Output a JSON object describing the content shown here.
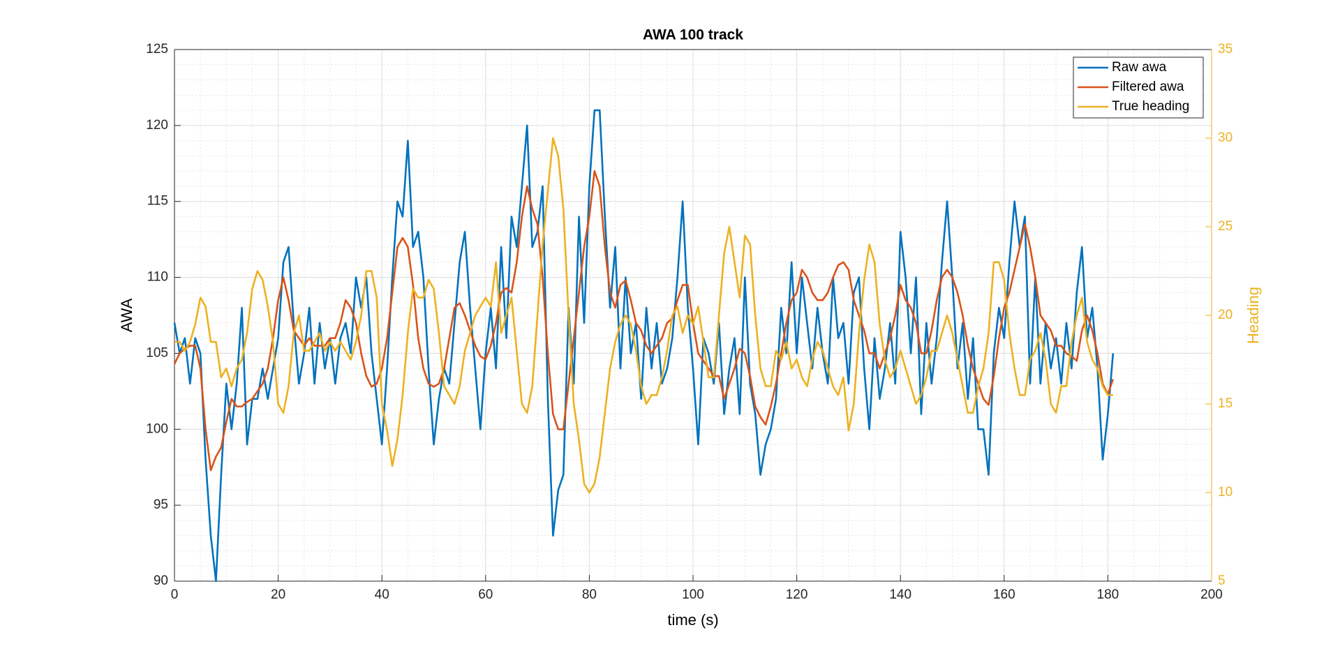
{
  "chart_data": {
    "type": "line",
    "title": "AWA 100 track",
    "xlabel": "time (s)",
    "ylabel": "AWA",
    "y2label": "Heading",
    "xlim": [
      0,
      200
    ],
    "xticks": [
      0,
      20,
      40,
      60,
      80,
      100,
      120,
      140,
      160,
      180,
      200
    ],
    "ylim": [
      90,
      125
    ],
    "yticks": [
      90,
      95,
      100,
      105,
      110,
      115,
      120,
      125
    ],
    "y2lim": [
      5,
      35
    ],
    "y2ticks": [
      5,
      10,
      15,
      20,
      25,
      30,
      35
    ],
    "grid": true,
    "minor_grid": true,
    "legend": "northeast",
    "y2color": "#EDB120",
    "x": [
      0,
      1,
      2,
      3,
      4,
      5,
      6,
      7,
      8,
      9,
      10,
      11,
      12,
      13,
      14,
      15,
      16,
      17,
      18,
      19,
      20,
      21,
      22,
      23,
      24,
      25,
      26,
      27,
      28,
      29,
      30,
      31,
      32,
      33,
      34,
      35,
      36,
      37,
      38,
      39,
      40,
      41,
      42,
      43,
      44,
      45,
      46,
      47,
      48,
      49,
      50,
      51,
      52,
      53,
      54,
      55,
      56,
      57,
      58,
      59,
      60,
      61,
      62,
      63,
      64,
      65,
      66,
      67,
      68,
      69,
      70,
      71,
      72,
      73,
      74,
      75,
      76,
      77,
      78,
      79,
      80,
      81,
      82,
      83,
      84,
      85,
      86,
      87,
      88,
      89,
      90,
      91,
      92,
      93,
      94,
      95,
      96,
      97,
      98,
      99,
      100,
      101,
      102,
      103,
      104,
      105,
      106,
      107,
      108,
      109,
      110,
      111,
      112,
      113,
      114,
      115,
      116,
      117,
      118,
      119,
      120,
      121,
      122,
      123,
      124,
      125,
      126,
      127,
      128,
      129,
      130,
      131,
      132,
      133,
      134,
      135,
      136,
      137,
      138,
      139,
      140,
      141,
      142,
      143,
      144,
      145,
      146,
      147,
      148,
      149,
      150,
      151,
      152,
      153,
      154,
      155,
      156,
      157,
      158,
      159,
      160,
      161,
      162,
      163,
      164,
      165,
      166,
      167,
      168,
      169,
      170,
      171,
      172,
      173,
      174,
      175,
      176,
      177,
      178,
      179,
      180,
      181
    ],
    "series": [
      {
        "name": "Raw awa",
        "color": "#0072BD",
        "axis": "y",
        "values": [
          107,
          105,
          106,
          103,
          106,
          105,
          98,
          93,
          90,
          97,
          103,
          100,
          103,
          108,
          99,
          102,
          102,
          104,
          102,
          104,
          106,
          111,
          112,
          107,
          103,
          105,
          108,
          103,
          107,
          104,
          106,
          103,
          106,
          107,
          105,
          110,
          108,
          110,
          105,
          102,
          99,
          104,
          110,
          115,
          114,
          119,
          112,
          113,
          110,
          104,
          99,
          102,
          104,
          103,
          107,
          111,
          113,
          108,
          104,
          100,
          105,
          108,
          104,
          112,
          106,
          114,
          112,
          116,
          120,
          112,
          113,
          116,
          102,
          93,
          96,
          97,
          108,
          103,
          114,
          107,
          116,
          121,
          121,
          114,
          108,
          112,
          104,
          110,
          105,
          107,
          102,
          108,
          104,
          107,
          103,
          104,
          106,
          110,
          115,
          108,
          104,
          99,
          106,
          105,
          103,
          107,
          101,
          104,
          106,
          101,
          110,
          103,
          101,
          97,
          99,
          100,
          102,
          108,
          105,
          111,
          105,
          110,
          107,
          104,
          108,
          105,
          103,
          110,
          106,
          107,
          103,
          109,
          110,
          104,
          100,
          106,
          102,
          104,
          107,
          103,
          113,
          110,
          105,
          110,
          101,
          107,
          103,
          106,
          111,
          115,
          110,
          104,
          107,
          102,
          106,
          100,
          100,
          97,
          105,
          108,
          106,
          111,
          115,
          112,
          114,
          103,
          110,
          103,
          107,
          104,
          106,
          103,
          107,
          104,
          109,
          112,
          106,
          108,
          104,
          98,
          101,
          105
        ]
      },
      {
        "name": "Filtered awa",
        "color": "#D95319",
        "axis": "y",
        "values": [
          104.3,
          105,
          105.3,
          105.5,
          105.5,
          104,
          100,
          97.3,
          98.2,
          98.8,
          100.5,
          102,
          101.5,
          101.5,
          101.8,
          102,
          102.5,
          103,
          104,
          106,
          108.5,
          110,
          108.5,
          106.5,
          106,
          105.5,
          106,
          105.5,
          105.5,
          105.5,
          106,
          106,
          107,
          108.5,
          108,
          107,
          105,
          103.5,
          102.8,
          103,
          104,
          106,
          109,
          112,
          112.6,
          112,
          109.5,
          106,
          104,
          103,
          102.8,
          103,
          104,
          106,
          108,
          108.3,
          107.5,
          106.5,
          105.5,
          104.8,
          104.6,
          105.5,
          107,
          109,
          109.3,
          109,
          111,
          114,
          116,
          114.5,
          113.5,
          110,
          105,
          101,
          100,
          100,
          103,
          106,
          109,
          112,
          114,
          117,
          116,
          112,
          109,
          108,
          109.5,
          109.8,
          108.5,
          107,
          106.5,
          105.5,
          105,
          105.5,
          106,
          107,
          107.3,
          108.5,
          109.5,
          109.5,
          107,
          105,
          104.5,
          104,
          103.5,
          103.5,
          102,
          103,
          104,
          105.3,
          105,
          103.5,
          101.5,
          100.8,
          100.3,
          101.5,
          103,
          105,
          107,
          108.5,
          109,
          110.5,
          110,
          109,
          108.5,
          108.5,
          109,
          110,
          110.8,
          111,
          110.5,
          108.5,
          107.5,
          106.5,
          105,
          105,
          104,
          105,
          106,
          107.5,
          109.5,
          108.5,
          108,
          107,
          105,
          105,
          106.5,
          108.5,
          110,
          110.5,
          110,
          109,
          107.5,
          105.5,
          104,
          103,
          102,
          101.6,
          103.5,
          106,
          108,
          109,
          110.5,
          112,
          113.5,
          112,
          110,
          107.5,
          107,
          106.5,
          105.5,
          105.5,
          105,
          104.8,
          104.5,
          106.5,
          107.5,
          106.5,
          105,
          103,
          102.3,
          103.3
        ]
      },
      {
        "name": "True heading",
        "color": "#EDB120",
        "axis": "y2",
        "values": [
          18.5,
          18.5,
          18,
          18.5,
          19.5,
          21,
          20.5,
          18.5,
          18.5,
          16.5,
          17,
          16,
          17,
          17.5,
          19,
          21.5,
          22.5,
          22,
          20.5,
          18.5,
          15,
          14.5,
          16,
          19,
          20,
          18,
          18,
          18.5,
          19,
          18,
          18.5,
          18,
          18.5,
          18,
          17.5,
          18.5,
          20,
          22.5,
          22.5,
          21,
          15,
          13.5,
          11.5,
          13,
          15.5,
          19,
          21.5,
          21,
          21,
          22,
          21.5,
          19,
          16,
          15.5,
          15,
          16,
          18,
          19,
          20,
          20.5,
          21,
          20.5,
          23,
          19,
          20,
          21,
          18,
          15,
          14.5,
          16,
          20,
          24,
          27,
          30,
          29,
          26,
          20,
          15,
          13,
          10.5,
          10,
          10.5,
          12,
          14.5,
          17,
          18.5,
          19.5,
          20,
          19.5,
          18,
          16,
          15,
          15.5,
          15.5,
          16.5,
          18,
          20,
          20.5,
          19,
          20,
          19.5,
          20.5,
          18.5,
          16.5,
          16.5,
          20,
          23.5,
          25,
          23,
          21,
          24.5,
          24,
          20,
          17,
          16,
          16,
          18,
          17.5,
          18.5,
          17,
          17.5,
          16.5,
          16,
          17.5,
          18.5,
          18,
          17,
          16,
          15.5,
          16.5,
          13.5,
          15,
          19,
          22,
          24,
          23,
          19.5,
          17.5,
          16.5,
          17,
          18,
          17,
          16,
          15,
          15.5,
          16.5,
          18,
          18,
          19,
          20,
          19,
          17.5,
          16,
          14.5,
          14.5,
          16,
          17,
          19,
          23,
          23,
          22,
          19,
          17,
          15.5,
          15.5,
          17.5,
          18,
          19,
          17.5,
          15,
          14.5,
          16,
          16,
          18.5,
          20,
          21,
          18.5,
          17.5,
          17,
          16,
          15.5,
          15.5
        ]
      }
    ]
  }
}
